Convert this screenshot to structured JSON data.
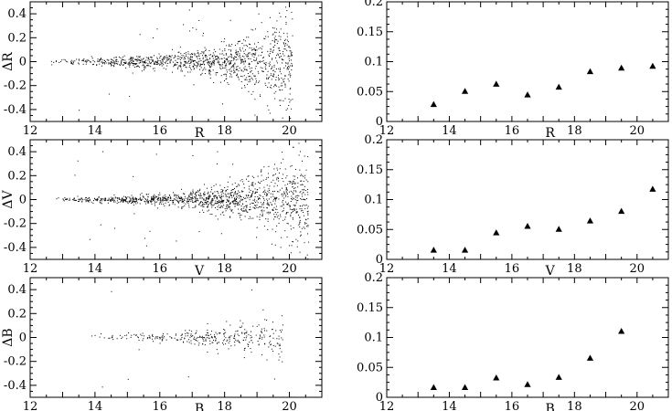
{
  "chart_data": [
    {
      "type": "scatter",
      "panel": "left-top",
      "title": "",
      "xlabel": "R",
      "ylabel": "ΔR",
      "xlim": [
        12,
        21
      ],
      "ylim": [
        -0.5,
        0.5
      ],
      "xticks": [
        12,
        14,
        16,
        18,
        20
      ],
      "yticks": [
        -0.4,
        -0.2,
        0,
        0.2,
        0.4
      ],
      "xtick_labels": [
        "12",
        "14",
        "16",
        "18",
        "20"
      ],
      "ytick_labels": [
        "-0.4",
        "-0.2",
        "0",
        "0.2",
        "0.4"
      ],
      "scatter_params": {
        "n": 1150,
        "x_start": 12.6,
        "x_end": 20.1,
        "sigma_base": 0.008,
        "sigma_slope": 0.038,
        "x_ref": 15.0,
        "seed": 11
      },
      "notes": "dense cloud of individual star residuals; spread grows toward faint magnitudes"
    },
    {
      "type": "scatter",
      "panel": "right-top",
      "title": "",
      "xlabel": "R",
      "ylabel": "",
      "xlim": [
        12,
        21
      ],
      "ylim": [
        0,
        0.2
      ],
      "xticks": [
        12,
        14,
        16,
        18,
        20
      ],
      "yticks": [
        0,
        0.05,
        0.1,
        0.15,
        0.2
      ],
      "xtick_labels": [
        "12",
        "14",
        "16",
        "18",
        "20"
      ],
      "ytick_labels": [
        "0",
        "0.05",
        "0.1",
        "0.15",
        "0.2"
      ],
      "marker": "triangle",
      "x": [
        13.5,
        14.5,
        15.5,
        16.5,
        17.5,
        18.5,
        19.5,
        20.5
      ],
      "y": [
        0.028,
        0.05,
        0.062,
        0.044,
        0.057,
        0.083,
        0.089,
        0.092
      ]
    },
    {
      "type": "scatter",
      "panel": "left-middle",
      "title": "",
      "xlabel": "V",
      "ylabel": "ΔV",
      "xlim": [
        12,
        21
      ],
      "ylim": [
        -0.5,
        0.5
      ],
      "xticks": [
        12,
        14,
        16,
        18,
        20
      ],
      "yticks": [
        -0.4,
        -0.2,
        0,
        0.2,
        0.4
      ],
      "xtick_labels": [
        "12",
        "14",
        "16",
        "18",
        "20"
      ],
      "ytick_labels": [
        "-0.4",
        "-0.2",
        "0",
        "0.2",
        "0.4"
      ],
      "scatter_params": {
        "n": 1300,
        "x_start": 12.7,
        "x_end": 20.6,
        "sigma_base": 0.006,
        "sigma_slope": 0.035,
        "x_ref": 15.3,
        "seed": 23
      },
      "notes": "dense cloud of individual star residuals; spread grows toward faint magnitudes"
    },
    {
      "type": "scatter",
      "panel": "right-middle",
      "title": "",
      "xlabel": "V",
      "ylabel": "",
      "xlim": [
        12,
        21
      ],
      "ylim": [
        0,
        0.2
      ],
      "xticks": [
        12,
        14,
        16,
        18,
        20
      ],
      "yticks": [
        0,
        0.05,
        0.1,
        0.15,
        0.2
      ],
      "xtick_labels": [
        "12",
        "14",
        "16",
        "18",
        "20"
      ],
      "ytick_labels": [
        "0",
        "0.05",
        "0.1",
        "0.15",
        "0.2"
      ],
      "marker": "triangle",
      "x": [
        13.5,
        14.5,
        15.5,
        16.5,
        17.5,
        18.5,
        19.5,
        20.5
      ],
      "y": [
        0.015,
        0.015,
        0.044,
        0.055,
        0.05,
        0.064,
        0.08,
        0.117
      ]
    },
    {
      "type": "scatter",
      "panel": "left-bottom",
      "title": "",
      "xlabel": "B",
      "ylabel": "ΔB",
      "xlim": [
        12,
        21
      ],
      "ylim": [
        -0.5,
        0.5
      ],
      "xticks": [
        12,
        14,
        16,
        18,
        20
      ],
      "yticks": [
        -0.4,
        -0.2,
        0,
        0.2,
        0.4
      ],
      "xtick_labels": [
        "12",
        "14",
        "16",
        "18",
        "20"
      ],
      "ytick_labels": [
        "-0.4",
        "-0.2",
        "0",
        "0.2",
        "0.4"
      ],
      "scatter_params": {
        "n": 330,
        "x_start": 13.8,
        "x_end": 19.8,
        "sigma_base": 0.01,
        "sigma_slope": 0.045,
        "x_ref": 16.5,
        "seed": 37
      },
      "notes": "sparser cloud of individual star residuals; spread grows toward faint magnitudes"
    },
    {
      "type": "scatter",
      "panel": "right-bottom",
      "title": "",
      "xlabel": "B",
      "ylabel": "",
      "xlim": [
        12,
        21
      ],
      "ylim": [
        0,
        0.2
      ],
      "xticks": [
        12,
        14,
        16,
        18,
        20
      ],
      "yticks": [
        0,
        0.05,
        0.1,
        0.15,
        0.2
      ],
      "xtick_labels": [
        "12",
        "14",
        "16",
        "18",
        "20"
      ],
      "ytick_labels": [
        "0",
        "0.05",
        "0.1",
        "0.15",
        "0.2"
      ],
      "marker": "triangle",
      "x": [
        13.5,
        14.5,
        15.5,
        16.5,
        17.5,
        18.5,
        19.5
      ],
      "y": [
        0.016,
        0.016,
        0.032,
        0.021,
        0.033,
        0.065,
        0.11
      ]
    }
  ],
  "colors": {
    "ink": "#000000",
    "background": "#ffffff"
  }
}
